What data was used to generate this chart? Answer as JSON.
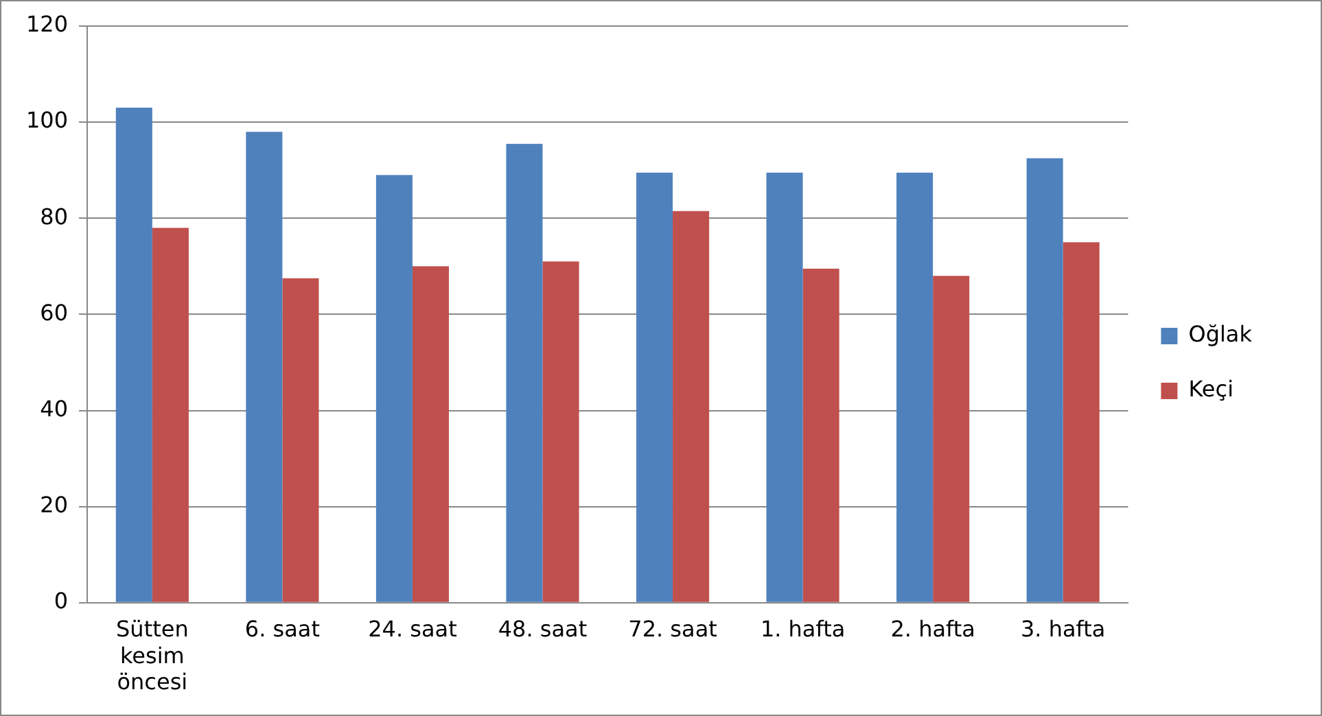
{
  "chart_data": {
    "type": "bar",
    "categories": [
      "Sütten kesim öncesi",
      "6. saat",
      "24. saat",
      "48. saat",
      "72. saat",
      "1. hafta",
      "2. hafta",
      "3. hafta"
    ],
    "series": [
      {
        "name": "Oğlak",
        "color": "#4f81bd",
        "values": [
          103,
          98,
          89,
          95.5,
          89.5,
          89.5,
          89.5,
          92.5
        ]
      },
      {
        "name": "Keçi",
        "color": "#c0504d",
        "values": [
          78,
          67.5,
          70,
          71,
          81.5,
          69.5,
          68,
          75
        ]
      }
    ],
    "ylim": [
      0,
      120
    ],
    "yticks": [
      0,
      20,
      40,
      60,
      80,
      100,
      120
    ],
    "grid": "y",
    "legend": "right"
  }
}
